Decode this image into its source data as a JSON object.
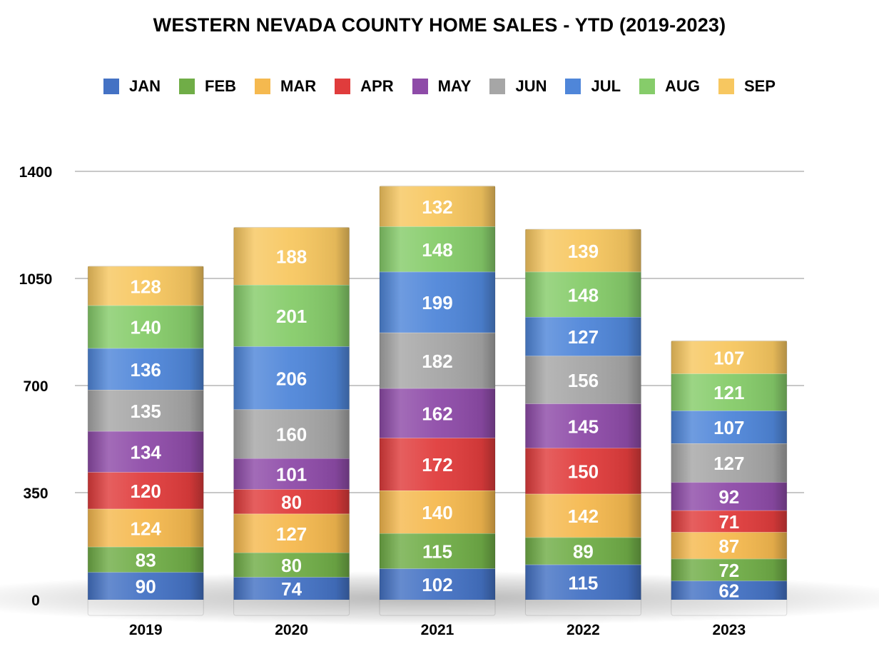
{
  "chart_data": {
    "type": "bar",
    "stacked": true,
    "title": "WESTERN NEVADA COUNTY HOME SALES - YTD (2019-2023)",
    "xlabel": "",
    "ylabel": "",
    "categories": [
      "2019",
      "2020",
      "2021",
      "2022",
      "2023"
    ],
    "ylim": [
      0,
      1400
    ],
    "yticks": [
      0,
      350,
      700,
      1050,
      1400
    ],
    "ytick_labels": [
      "0",
      "350",
      "700",
      "1050",
      "1400"
    ],
    "grid": true,
    "legend_position": "top",
    "series": [
      {
        "name": "JAN",
        "color": "#4472c4",
        "values": [
          90,
          74,
          102,
          115,
          62
        ]
      },
      {
        "name": "FEB",
        "color": "#70ad47",
        "values": [
          83,
          80,
          115,
          89,
          72
        ]
      },
      {
        "name": "MAR",
        "color": "#f5b94f",
        "values": [
          124,
          127,
          140,
          142,
          87
        ]
      },
      {
        "name": "APR",
        "color": "#e03c3c",
        "values": [
          120,
          80,
          172,
          150,
          71
        ]
      },
      {
        "name": "MAY",
        "color": "#8e4ba8",
        "values": [
          134,
          101,
          162,
          145,
          92
        ]
      },
      {
        "name": "JUN",
        "color": "#a6a6a6",
        "values": [
          135,
          160,
          182,
          156,
          127
        ]
      },
      {
        "name": "JUL",
        "color": "#4f86d9",
        "values": [
          136,
          206,
          199,
          127,
          107
        ]
      },
      {
        "name": "AUG",
        "color": "#86cc6a",
        "values": [
          140,
          201,
          148,
          148,
          121
        ]
      },
      {
        "name": "SEP",
        "color": "#f7c760",
        "values": [
          128,
          188,
          132,
          139,
          107
        ]
      }
    ]
  }
}
